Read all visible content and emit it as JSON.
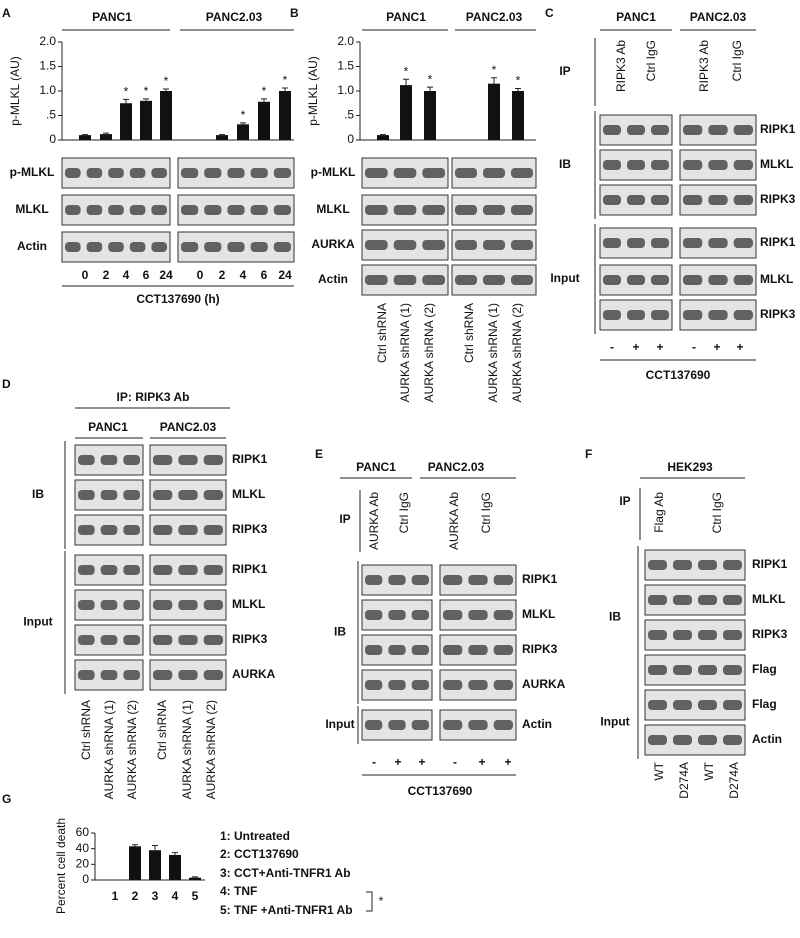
{
  "chart_data": [
    {
      "type": "bar",
      "panel_label": "A",
      "ylabel": "p-MLKL (AU)",
      "xlabel": "CCT137690 (h)",
      "ylim": [
        0,
        2
      ],
      "yticks": [
        0,
        {
          "value": 0.5,
          "label": ".5"
        },
        {
          "value": 1,
          "label": "1.0"
        },
        {
          "value": 1.5,
          "label": "1.5"
        },
        {
          "value": 2,
          "label": "2.0"
        }
      ],
      "color": "#111111",
      "series": [
        {
          "name": "PANC1",
          "categories": [
            "0",
            "2",
            "4",
            "6",
            "24"
          ],
          "values": [
            0.1,
            0.12,
            0.75,
            0.8,
            1.0
          ],
          "errors": [
            0.01,
            0.02,
            0.08,
            0.04,
            0.04
          ],
          "annotations": [
            null,
            null,
            "*",
            "*",
            "*"
          ]
        },
        {
          "name": "PANC2.03",
          "categories": [
            "0",
            "2",
            "4",
            "6",
            "24"
          ],
          "values": [
            0,
            0.1,
            0.32,
            0.78,
            1.0
          ],
          "errors": [
            0,
            0.01,
            0.03,
            0.06,
            0.06
          ],
          "annotations": [
            null,
            null,
            "*",
            "*",
            "*"
          ]
        }
      ],
      "blot_rows": [
        "p-MLKL",
        "MLKL",
        "Actin"
      ]
    },
    {
      "type": "bar",
      "panel_label": "B",
      "ylabel": "p-MLKL (AU)",
      "ylim": [
        0,
        2
      ],
      "yticks": [
        0,
        {
          "value": 0.5,
          "label": ".5"
        },
        {
          "value": 1,
          "label": "1.0"
        },
        {
          "value": 1.5,
          "label": "1.5"
        },
        {
          "value": 2,
          "label": "2.0"
        }
      ],
      "color": "#111111",
      "series": [
        {
          "name": "PANC1",
          "categories": [
            "Ctrl shRNA",
            "AURKA shRNA (1)",
            "AURKA shRNA (2)"
          ],
          "values": [
            0.1,
            1.12,
            1.0
          ],
          "errors": [
            0.01,
            0.12,
            0.08
          ],
          "annotations": [
            null,
            "*",
            "*"
          ]
        },
        {
          "name": "PANC2.03",
          "categories": [
            "Ctrl shRNA",
            "AURKA shRNA (1)",
            "AURKA shRNA (2)"
          ],
          "values": [
            0,
            1.15,
            1.0
          ],
          "errors": [
            0,
            0.12,
            0.05
          ],
          "annotations": [
            null,
            "*",
            "*"
          ]
        }
      ],
      "blot_rows": [
        "p-MLKL",
        "MLKL",
        "AURKA",
        "Actin"
      ]
    },
    {
      "type": "bar",
      "panel_label": "G",
      "ylabel": "Percent cell death",
      "ylim": [
        0,
        60
      ],
      "yticks": [
        0,
        20,
        40,
        60
      ],
      "color": "#111111",
      "categories": [
        "1",
        "2",
        "3",
        "4",
        "5"
      ],
      "values": [
        0,
        43,
        38,
        32,
        3
      ],
      "errors": [
        0,
        2,
        6,
        3,
        1
      ],
      "legend": [
        "1: Untreated",
        "2: CCT137690",
        "3: CCT+Anti-TNFR1 Ab",
        "4: TNF",
        "5: TNF +Anti-TNFR1 Ab"
      ],
      "significance": "*"
    }
  ],
  "blots": [
    {
      "panel_label": "C",
      "groups": [
        "PANC1",
        "PANC2.03"
      ],
      "ip_label": "IP",
      "lane_headers": [
        "RIPK3 Ab",
        "Ctrl IgG",
        "RIPK3 Ab",
        "Ctrl IgG"
      ],
      "sections": [
        {
          "name": "IB",
          "rows": [
            "RIPK1",
            "MLKL",
            "RIPK3"
          ]
        },
        {
          "name": "Input",
          "rows": [
            "RIPK1",
            "MLKL",
            "RIPK3"
          ]
        }
      ],
      "treatment": [
        "-",
        "+",
        "+",
        "-",
        "+",
        "+"
      ],
      "treatment_name": "CCT137690"
    },
    {
      "panel_label": "D",
      "title": "IP: RIPK3 Ab",
      "groups": [
        "PANC1",
        "PANC2.03"
      ],
      "sections": [
        {
          "name": "IB",
          "rows": [
            "RIPK1",
            "MLKL",
            "RIPK3"
          ]
        },
        {
          "name": "Input",
          "rows": [
            "RIPK1",
            "MLKL",
            "RIPK3",
            "AURKA"
          ]
        }
      ],
      "lane_labels": [
        "Ctrl shRNA",
        "AURKA shRNA (1)",
        "AURKA shRNA (2)",
        "Ctrl shRNA",
        "AURKA shRNA (1)",
        "AURKA shRNA (2)"
      ]
    },
    {
      "panel_label": "E",
      "groups": [
        "PANC1",
        "PANC2.03"
      ],
      "ip_label": "IP",
      "lane_headers": [
        "AURKA Ab",
        "Ctrl IgG",
        "AURKA Ab",
        "Ctrl IgG"
      ],
      "sections": [
        {
          "name": "IB",
          "rows": [
            "RIPK1",
            "MLKL",
            "RIPK3",
            "AURKA"
          ]
        },
        {
          "name": "Input",
          "rows": [
            "Actin"
          ]
        }
      ],
      "treatment": [
        "-",
        "+",
        "+",
        "-",
        "+",
        "+"
      ],
      "treatment_name": "CCT137690"
    },
    {
      "panel_label": "F",
      "groups": [
        "HEK293"
      ],
      "ip_label": "IP",
      "lane_headers": [
        "Flag Ab",
        "Ctrl IgG"
      ],
      "sections": [
        {
          "name": "IB",
          "rows": [
            "RIPK1",
            "MLKL",
            "RIPK3",
            "Flag"
          ]
        },
        {
          "name": "Input",
          "rows": [
            "Flag",
            "Actin"
          ]
        }
      ],
      "lane_labels": [
        "WT",
        "D274A",
        "WT",
        "D274A"
      ]
    }
  ]
}
